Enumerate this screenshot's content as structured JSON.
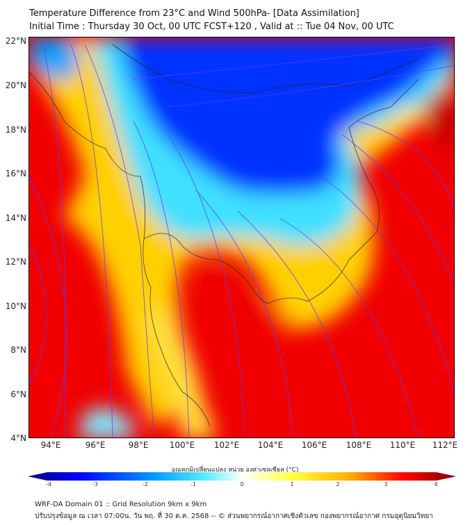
{
  "title": {
    "line1": "Temperature Difference from 23°C and Wind 500hPa- [Data Assimilation]",
    "line2": "Initial Time : Thursday 30 Oct, 00 UTC FCST+120 , Valid at ::  Tue 04 Nov, 00 UTC"
  },
  "axes": {
    "lat_labels": [
      "22°N",
      "20°N",
      "18°N",
      "16°N",
      "14°N",
      "12°N",
      "10°N",
      "8°N",
      "6°N",
      "4°N"
    ],
    "lon_labels": [
      "94°E",
      "96°E",
      "98°E",
      "100°E",
      "102°E",
      "104°E",
      "106°E",
      "108°E",
      "110°E",
      "112°E"
    ]
  },
  "colorbar": {
    "label": "อุณหภูมิเปลี่ยนแปลง หน่วย องศาเซลเซียส (°C)",
    "ticks": [
      "-4",
      "-3",
      "-2",
      "-1",
      "0",
      "1",
      "2",
      "3",
      "4"
    ],
    "range": [
      -4,
      4
    ],
    "colors": [
      "#000080",
      "#0000ff",
      "#00a0ff",
      "#40f0ff",
      "#ffffff",
      "#ffff40",
      "#ffb000",
      "#ff0000",
      "#800000"
    ]
  },
  "footer": {
    "line1": "WRF-DA Domain 01 :: Grid Resolution 9km x 9km",
    "line2": "ปรับปรุงข้อมูล ณ เวลา 07:00น. วัน พฤ. ที่ 30 ต.ค. 2568 -- © ส่วนพยากรณ์อากาศเชิงตัวเลข กองพยากรณ์อากาศ กรมอุตุนิยมวิทยา"
  }
}
